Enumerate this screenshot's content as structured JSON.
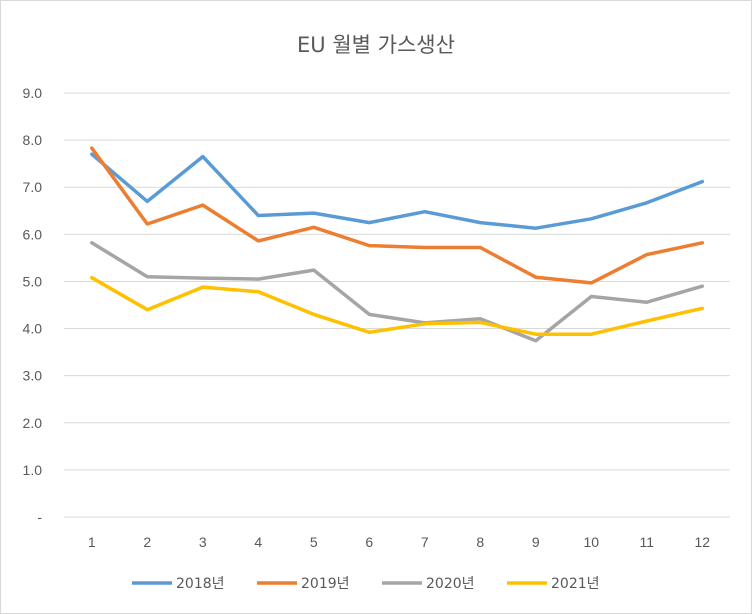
{
  "chart_data": {
    "type": "line",
    "title": "EU 월별 가스생산",
    "x": [
      "1",
      "2",
      "3",
      "4",
      "5",
      "6",
      "7",
      "8",
      "9",
      "10",
      "11",
      "12"
    ],
    "y_ticks": [
      "-",
      "1.0",
      "2.0",
      "3.0",
      "4.0",
      "5.0",
      "6.0",
      "7.0",
      "8.0",
      "9.0"
    ],
    "ylim": [
      0,
      9
    ],
    "grid": true,
    "legend_position": "bottom",
    "series": [
      {
        "name": "2018년",
        "color": "#5b9bd5",
        "values": [
          7.7,
          6.7,
          7.65,
          6.4,
          6.45,
          6.25,
          6.48,
          6.25,
          6.13,
          6.33,
          6.67,
          7.12
        ]
      },
      {
        "name": "2019년",
        "color": "#ed7d31",
        "values": [
          7.83,
          6.22,
          6.62,
          5.86,
          6.15,
          5.76,
          5.72,
          5.72,
          5.09,
          4.97,
          5.57,
          5.82
        ]
      },
      {
        "name": "2020년",
        "color": "#a5a5a5",
        "values": [
          5.82,
          5.1,
          5.07,
          5.05,
          5.24,
          4.3,
          4.12,
          4.21,
          3.74,
          4.68,
          4.56,
          4.9
        ]
      },
      {
        "name": "2021년",
        "color": "#ffc000",
        "values": [
          5.08,
          4.4,
          4.88,
          4.78,
          4.3,
          3.92,
          4.1,
          4.13,
          3.88,
          3.88,
          4.16,
          4.43
        ]
      }
    ]
  }
}
